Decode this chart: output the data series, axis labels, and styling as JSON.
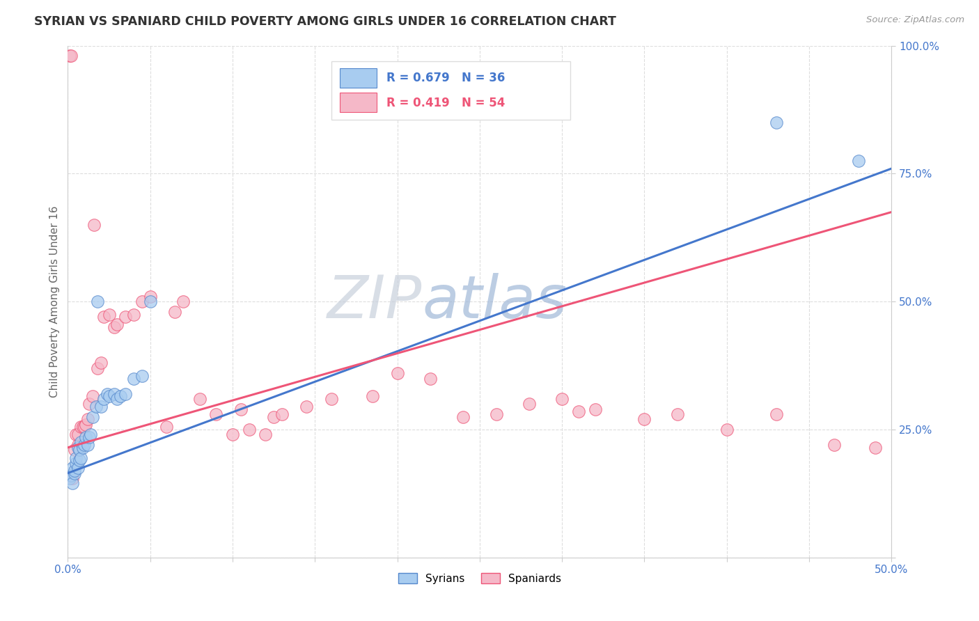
{
  "title": "SYRIAN VS SPANIARD CHILD POVERTY AMONG GIRLS UNDER 16 CORRELATION CHART",
  "source": "Source: ZipAtlas.com",
  "ylabel": "Child Poverty Among Girls Under 16",
  "xlim": [
    0.0,
    0.5
  ],
  "ylim": [
    0.0,
    1.0
  ],
  "xticks": [
    0.0,
    0.05,
    0.1,
    0.15,
    0.2,
    0.25,
    0.3,
    0.35,
    0.4,
    0.45,
    0.5
  ],
  "yticks": [
    0.0,
    0.25,
    0.5,
    0.75,
    1.0
  ],
  "xtick_labels": [
    "0.0%",
    "",
    "",
    "",
    "",
    "",
    "",
    "",
    "",
    "",
    "50.0%"
  ],
  "ytick_labels": [
    "",
    "25.0%",
    "50.0%",
    "75.0%",
    "100.0%"
  ],
  "legend_r_blue": "R = 0.679",
  "legend_n_blue": "N = 36",
  "legend_r_pink": "R = 0.419",
  "legend_n_pink": "N = 54",
  "blue_fill": "#A8CCF0",
  "pink_fill": "#F5B8C8",
  "blue_edge": "#5588CC",
  "pink_edge": "#EE5577",
  "blue_line": "#4477CC",
  "pink_line": "#EE5577",
  "title_color": "#333333",
  "axis_label_color": "#666666",
  "tick_color": "#4477CC",
  "watermark_zip": "#C8D0DC",
  "watermark_atlas": "#A0B8D8",
  "background_color": "#FFFFFF",
  "grid_color": "#DDDDDD",
  "blue_line_x0": 0.0,
  "blue_line_y0": 0.165,
  "blue_line_x1": 0.5,
  "blue_line_y1": 0.76,
  "pink_line_x0": 0.0,
  "pink_line_y0": 0.215,
  "pink_line_x1": 0.5,
  "pink_line_y1": 0.675,
  "syrians_x": [
    0.001,
    0.002,
    0.003,
    0.003,
    0.004,
    0.004,
    0.005,
    0.005,
    0.006,
    0.006,
    0.007,
    0.007,
    0.008,
    0.008,
    0.009,
    0.01,
    0.011,
    0.012,
    0.013,
    0.014,
    0.015,
    0.017,
    0.018,
    0.02,
    0.022,
    0.024,
    0.025,
    0.028,
    0.03,
    0.032,
    0.035,
    0.04,
    0.045,
    0.05,
    0.43,
    0.48
  ],
  "syrians_y": [
    0.155,
    0.16,
    0.175,
    0.145,
    0.165,
    0.17,
    0.185,
    0.195,
    0.175,
    0.215,
    0.19,
    0.21,
    0.195,
    0.225,
    0.215,
    0.22,
    0.235,
    0.22,
    0.235,
    0.24,
    0.275,
    0.295,
    0.5,
    0.295,
    0.31,
    0.32,
    0.315,
    0.32,
    0.31,
    0.315,
    0.32,
    0.35,
    0.355,
    0.5,
    0.85,
    0.775
  ],
  "spaniards_x": [
    0.001,
    0.002,
    0.003,
    0.004,
    0.005,
    0.006,
    0.006,
    0.007,
    0.008,
    0.009,
    0.01,
    0.011,
    0.012,
    0.013,
    0.015,
    0.016,
    0.018,
    0.02,
    0.022,
    0.025,
    0.028,
    0.03,
    0.035,
    0.04,
    0.045,
    0.05,
    0.06,
    0.065,
    0.07,
    0.08,
    0.09,
    0.1,
    0.105,
    0.11,
    0.12,
    0.125,
    0.13,
    0.145,
    0.16,
    0.185,
    0.2,
    0.22,
    0.24,
    0.26,
    0.28,
    0.3,
    0.31,
    0.32,
    0.35,
    0.37,
    0.4,
    0.43,
    0.465,
    0.49
  ],
  "spaniards_y": [
    0.98,
    0.98,
    0.155,
    0.21,
    0.24,
    0.22,
    0.24,
    0.21,
    0.255,
    0.255,
    0.255,
    0.26,
    0.27,
    0.3,
    0.315,
    0.65,
    0.37,
    0.38,
    0.47,
    0.475,
    0.45,
    0.455,
    0.47,
    0.475,
    0.5,
    0.51,
    0.255,
    0.48,
    0.5,
    0.31,
    0.28,
    0.24,
    0.29,
    0.25,
    0.24,
    0.275,
    0.28,
    0.295,
    0.31,
    0.315,
    0.36,
    0.35,
    0.275,
    0.28,
    0.3,
    0.31,
    0.285,
    0.29,
    0.27,
    0.28,
    0.25,
    0.28,
    0.22,
    0.215
  ]
}
